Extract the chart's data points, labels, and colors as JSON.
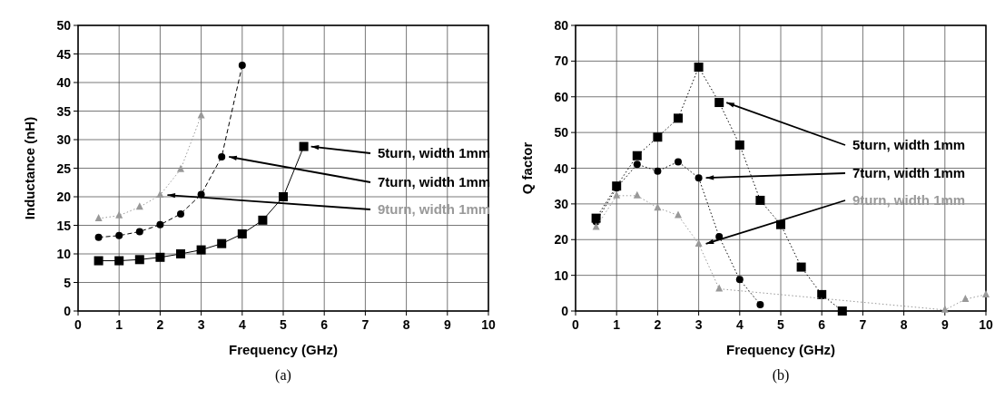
{
  "chart_data": [
    {
      "type": "line",
      "xlabel": "Frequency (GHz)",
      "ylabel": "Inductance (nH)",
      "xlim": [
        0,
        10
      ],
      "xticks": [
        0,
        1,
        2,
        3,
        4,
        5,
        6,
        7,
        8,
        9,
        10
      ],
      "ylim": [
        0,
        50
      ],
      "yticks": [
        0,
        5,
        10,
        15,
        20,
        25,
        30,
        35,
        40,
        45,
        50
      ],
      "grid": true,
      "legend": "right",
      "annotations": [
        "(a)"
      ],
      "series": [
        {
          "name": "5turn, width 1mm",
          "color": "#000000",
          "marker": "square",
          "line_style": "solid",
          "x": [
            0.5,
            1,
            1.5,
            2,
            2.5,
            3,
            3.5,
            4,
            4.5,
            5,
            5.5
          ],
          "values": [
            8.8,
            8.8,
            9.0,
            9.4,
            10.0,
            10.7,
            11.8,
            13.5,
            15.9,
            20.0,
            28.8
          ]
        },
        {
          "name": "7turn, width 1mm",
          "color": "#000000",
          "marker": "circle",
          "line_style": "dashed",
          "x": [
            0.5,
            1,
            1.5,
            2,
            2.5,
            3,
            3.5,
            4
          ],
          "values": [
            12.9,
            13.2,
            13.9,
            15.1,
            17.0,
            20.4,
            27.0,
            43.0
          ]
        },
        {
          "name": "9turn, width 1mm",
          "color": "#999999",
          "marker": "triangle",
          "line_style": "dotted",
          "x": [
            0.5,
            1,
            1.5,
            2,
            2.5,
            3
          ],
          "values": [
            16.2,
            16.7,
            18.2,
            20.3,
            24.8,
            34.2
          ]
        }
      ]
    },
    {
      "type": "line",
      "xlabel": "Frequency (GHz)",
      "ylabel": "Q factor",
      "xlim": [
        0,
        10
      ],
      "xticks": [
        0,
        1,
        2,
        3,
        4,
        5,
        6,
        7,
        8,
        9,
        10
      ],
      "ylim": [
        0,
        80
      ],
      "yticks": [
        0,
        10,
        20,
        30,
        40,
        50,
        60,
        70,
        80
      ],
      "grid": true,
      "legend": "right",
      "annotations": [
        "(b)"
      ],
      "series": [
        {
          "name": "5turn, width 1mm",
          "color": "#000000",
          "marker": "square",
          "line_style": "dotted",
          "x": [
            0.5,
            1,
            1.5,
            2,
            2.5,
            3,
            3.5,
            4,
            4.5,
            5,
            5.5,
            6,
            6.5
          ],
          "values": [
            26,
            35,
            43.5,
            48.7,
            54,
            68.3,
            58.4,
            46.5,
            31,
            24.2,
            12.3,
            4.6,
            0
          ]
        },
        {
          "name": "7turn, width 1mm",
          "color": "#000000",
          "marker": "circle",
          "line_style": "dotted",
          "x": [
            0.5,
            1,
            1.5,
            2,
            2.5,
            3,
            3.5,
            4,
            4.5
          ],
          "values": [
            25,
            34.5,
            41.1,
            39.2,
            41.8,
            37.3,
            20.8,
            8.8,
            1.8
          ]
        },
        {
          "name": "9turn, width 1mm",
          "color": "#999999",
          "marker": "triangle",
          "line_style": "dotted",
          "x": [
            0.5,
            1,
            1.5,
            2,
            2.5,
            3,
            3.5,
            9,
            9.5,
            10
          ],
          "values": [
            23.5,
            32.3,
            32.3,
            28.9,
            26.8,
            18.8,
            6.2,
            0.3,
            3.3,
            4.6
          ]
        }
      ]
    }
  ]
}
